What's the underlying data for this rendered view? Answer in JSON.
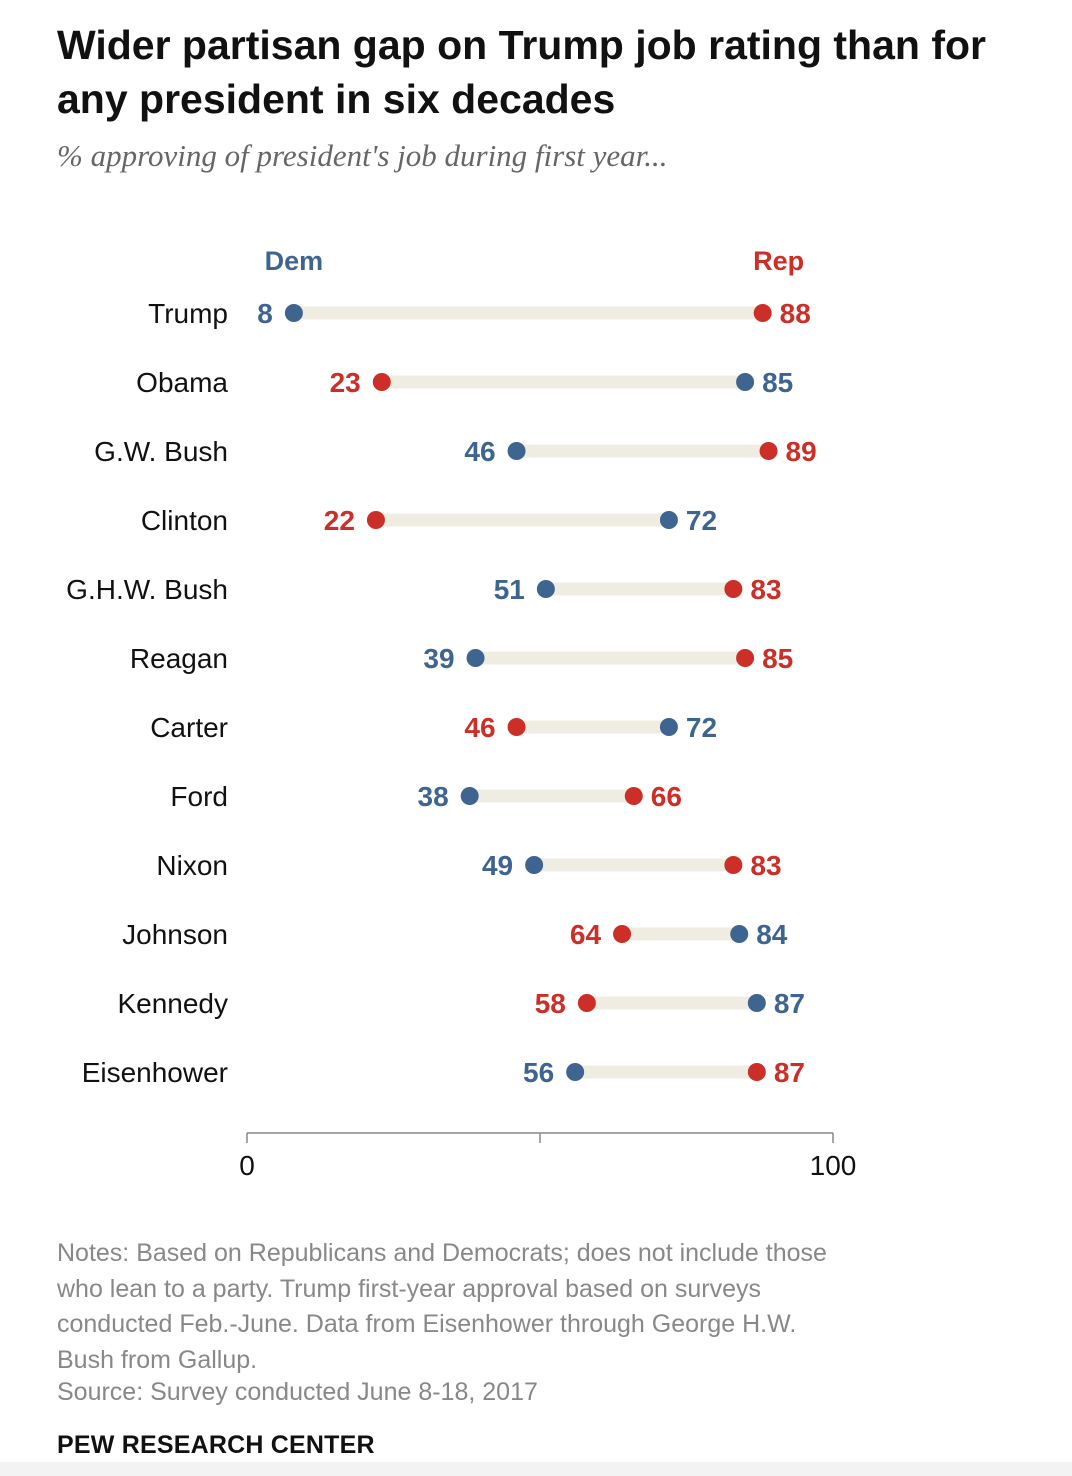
{
  "chart_data": {
    "type": "dumbbell",
    "title": "Wider partisan gap on Trump job rating than for any president in six decades",
    "subtitle": "% approving of president's job during first year...",
    "series": [
      {
        "name": "Dem",
        "color": "#3e6590"
      },
      {
        "name": "Rep",
        "color": "#cc2f27"
      }
    ],
    "categories": [
      "Trump",
      "Obama",
      "G.W. Bush",
      "Clinton",
      "G.H.W. Bush",
      "Reagan",
      "Carter",
      "Ford",
      "Nixon",
      "Johnson",
      "Kennedy",
      "Eisenhower"
    ],
    "dem": [
      8,
      85,
      46,
      72,
      51,
      39,
      72,
      38,
      49,
      84,
      87,
      56
    ],
    "rep": [
      88,
      23,
      89,
      22,
      83,
      85,
      46,
      66,
      83,
      64,
      58,
      87
    ],
    "xlim": [
      0,
      100
    ],
    "xticks": [
      0,
      50,
      100
    ],
    "xtick_labels": [
      "0",
      "",
      "100"
    ],
    "connector_color": "#efece1"
  },
  "notes": "Notes: Based on Republicans and Democrats; does not include those who lean to a party. Trump first-year approval based on surveys conducted Feb.-June. Data from Eisenhower through George H.W. Bush from Gallup.",
  "source": "Source: Survey conducted June 8-18, 2017",
  "brand": "PEW RESEARCH CENTER"
}
